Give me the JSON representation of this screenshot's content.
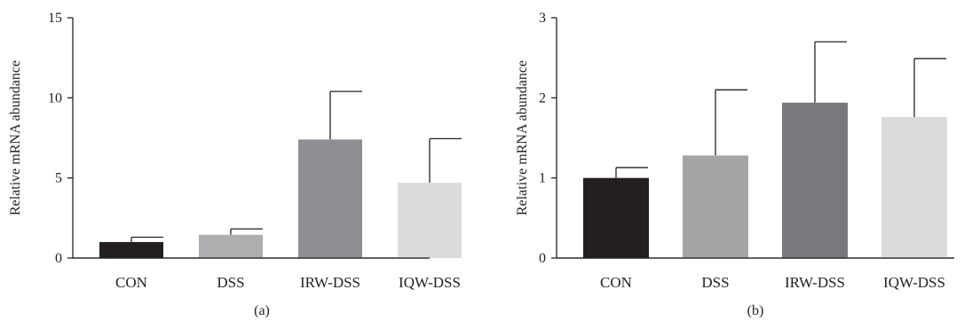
{
  "chart_data": [
    {
      "type": "bar",
      "panel_label": "(a)",
      "ylabel": "Relative mRNA abundance",
      "xlabel": "",
      "ylim": [
        0,
        15
      ],
      "yticks": [
        0,
        5,
        10,
        15
      ],
      "categories": [
        "CON",
        "DSS",
        "IRW-DSS",
        "IQW-DSS"
      ],
      "values": [
        1.0,
        1.45,
        7.4,
        4.7
      ],
      "error_upper": [
        1.3,
        1.82,
        10.4,
        7.45
      ],
      "colors": [
        "#231f20",
        "#aeaeb0",
        "#8f8f93",
        "#dadbdc"
      ],
      "grid": false
    },
    {
      "type": "bar",
      "panel_label": "(b)",
      "ylabel": "Relative mRNA abundance",
      "xlabel": "",
      "ylim": [
        0,
        3
      ],
      "yticks": [
        0,
        1,
        2,
        3
      ],
      "categories": [
        "CON",
        "DSS",
        "IRW-DSS",
        "IQW-DSS"
      ],
      "values": [
        1.0,
        1.28,
        1.94,
        1.76
      ],
      "error_upper": [
        1.13,
        2.1,
        2.7,
        2.49
      ],
      "colors": [
        "#231f20",
        "#a3a4a6",
        "#78797c",
        "#dadbdc"
      ],
      "grid": false
    }
  ]
}
